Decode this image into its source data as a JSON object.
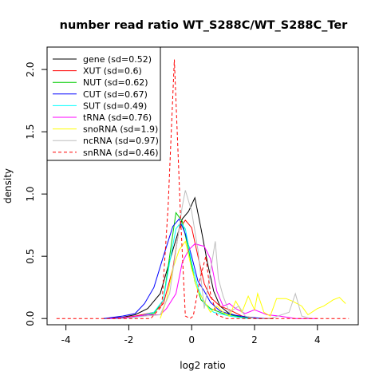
{
  "chart_data": {
    "type": "line",
    "title": "number read ratio WT_S288C/WT_S288C_Ter",
    "xlabel": "log2 ratio",
    "ylabel": "density",
    "xlim": [
      -4.6,
      5.3
    ],
    "ylim": [
      -0.05,
      2.18
    ],
    "xticks": [
      -4,
      -2,
      0,
      2,
      4
    ],
    "yticks": [
      0.0,
      0.5,
      1.0,
      1.5,
      2.0
    ],
    "xtick_labels": [
      "-4",
      "-2",
      "0",
      "2",
      "4"
    ],
    "ytick_labels": [
      "0.0",
      "0.5",
      "1.0",
      "1.5",
      "2.0"
    ],
    "grid": false,
    "legend_position": "top-left",
    "series": [
      {
        "name": "gene (sd=0.52)",
        "color": "#000000",
        "dash": false,
        "points": [
          [
            -2.8,
            0.0
          ],
          [
            -2.2,
            0.01
          ],
          [
            -1.8,
            0.03
          ],
          [
            -1.4,
            0.08
          ],
          [
            -1.0,
            0.2
          ],
          [
            -0.6,
            0.55
          ],
          [
            -0.3,
            0.8
          ],
          [
            -0.1,
            0.86
          ],
          [
            0.1,
            0.97
          ],
          [
            0.3,
            0.72
          ],
          [
            0.5,
            0.45
          ],
          [
            0.7,
            0.22
          ],
          [
            0.9,
            0.1
          ],
          [
            1.2,
            0.04
          ],
          [
            1.6,
            0.01
          ],
          [
            2.2,
            0.0
          ],
          [
            2.6,
            0.0
          ]
        ]
      },
      {
        "name": "XUT (sd=0.6)",
        "color": "#ff0000",
        "dash": false,
        "points": [
          [
            -2.4,
            0.0
          ],
          [
            -1.8,
            0.02
          ],
          [
            -1.2,
            0.05
          ],
          [
            -0.9,
            0.12
          ],
          [
            -0.6,
            0.4
          ],
          [
            -0.4,
            0.72
          ],
          [
            -0.2,
            0.79
          ],
          [
            0.0,
            0.73
          ],
          [
            0.2,
            0.5
          ],
          [
            0.4,
            0.28
          ],
          [
            0.6,
            0.17
          ],
          [
            0.9,
            0.1
          ],
          [
            1.2,
            0.07
          ],
          [
            1.6,
            0.02
          ],
          [
            2.2,
            0.0
          ],
          [
            2.6,
            0.0
          ]
        ]
      },
      {
        "name": "NUT (sd=0.62)",
        "color": "#00cc00",
        "dash": false,
        "points": [
          [
            -2.4,
            0.0
          ],
          [
            -1.8,
            0.01
          ],
          [
            -1.2,
            0.04
          ],
          [
            -0.9,
            0.15
          ],
          [
            -0.7,
            0.5
          ],
          [
            -0.5,
            0.85
          ],
          [
            -0.3,
            0.78
          ],
          [
            -0.1,
            0.55
          ],
          [
            0.1,
            0.3
          ],
          [
            0.3,
            0.15
          ],
          [
            0.6,
            0.08
          ],
          [
            1.0,
            0.04
          ],
          [
            1.6,
            0.01
          ],
          [
            2.2,
            0.0
          ]
        ]
      },
      {
        "name": "CUT (sd=0.67)",
        "color": "#0000ff",
        "dash": false,
        "points": [
          [
            -2.8,
            0.0
          ],
          [
            -2.2,
            0.02
          ],
          [
            -1.8,
            0.04
          ],
          [
            -1.5,
            0.12
          ],
          [
            -1.2,
            0.25
          ],
          [
            -0.9,
            0.5
          ],
          [
            -0.6,
            0.74
          ],
          [
            -0.4,
            0.8
          ],
          [
            -0.2,
            0.68
          ],
          [
            0.0,
            0.5
          ],
          [
            0.2,
            0.3
          ],
          [
            0.4,
            0.22
          ],
          [
            0.6,
            0.13
          ],
          [
            0.9,
            0.06
          ],
          [
            1.3,
            0.03
          ],
          [
            1.8,
            0.01
          ],
          [
            2.4,
            0.0
          ]
        ]
      },
      {
        "name": "SUT (sd=0.49)",
        "color": "#00ffff",
        "dash": false,
        "points": [
          [
            -2.4,
            0.0
          ],
          [
            -1.8,
            0.01
          ],
          [
            -1.2,
            0.05
          ],
          [
            -0.9,
            0.15
          ],
          [
            -0.7,
            0.45
          ],
          [
            -0.5,
            0.72
          ],
          [
            -0.35,
            0.77
          ],
          [
            -0.2,
            0.72
          ],
          [
            0.0,
            0.45
          ],
          [
            0.2,
            0.25
          ],
          [
            0.4,
            0.12
          ],
          [
            0.7,
            0.05
          ],
          [
            1.2,
            0.02
          ],
          [
            1.8,
            0.0
          ]
        ]
      },
      {
        "name": "tRNA (sd=0.76)",
        "color": "#ff00ff",
        "dash": false,
        "points": [
          [
            -2.6,
            0.0
          ],
          [
            -2.0,
            0.01
          ],
          [
            -1.4,
            0.03
          ],
          [
            -1.0,
            0.03
          ],
          [
            -0.8,
            0.08
          ],
          [
            -0.5,
            0.2
          ],
          [
            -0.3,
            0.45
          ],
          [
            -0.1,
            0.55
          ],
          [
            0.1,
            0.6
          ],
          [
            0.4,
            0.58
          ],
          [
            0.6,
            0.48
          ],
          [
            0.8,
            0.22
          ],
          [
            1.0,
            0.1
          ],
          [
            1.2,
            0.12
          ],
          [
            1.4,
            0.08
          ],
          [
            1.7,
            0.04
          ],
          [
            2.0,
            0.07
          ],
          [
            2.4,
            0.03
          ],
          [
            2.8,
            0.02
          ],
          [
            3.3,
            0.0
          ],
          [
            4.0,
            0.0
          ]
        ]
      },
      {
        "name": "snoRNA (sd=1.9)",
        "color": "#ffff00",
        "dash": false,
        "points": [
          [
            -1.0,
            0.0
          ],
          [
            -0.8,
            0.15
          ],
          [
            -0.6,
            0.4
          ],
          [
            -0.4,
            0.55
          ],
          [
            -0.2,
            0.62
          ],
          [
            0.0,
            0.4
          ],
          [
            0.2,
            0.22
          ],
          [
            0.4,
            0.14
          ],
          [
            0.6,
            0.05
          ],
          [
            0.8,
            0.1
          ],
          [
            1.0,
            0.05
          ],
          [
            1.2,
            0.02
          ],
          [
            1.4,
            0.14
          ],
          [
            1.6,
            0.05
          ],
          [
            1.8,
            0.18
          ],
          [
            2.0,
            0.07
          ],
          [
            2.1,
            0.2
          ],
          [
            2.3,
            0.05
          ],
          [
            2.5,
            0.02
          ],
          [
            2.7,
            0.16
          ],
          [
            3.0,
            0.16
          ],
          [
            3.2,
            0.14
          ],
          [
            3.5,
            0.1
          ],
          [
            3.7,
            0.03
          ],
          [
            4.0,
            0.08
          ],
          [
            4.2,
            0.1
          ],
          [
            4.5,
            0.15
          ],
          [
            4.7,
            0.17
          ],
          [
            4.9,
            0.12
          ]
        ]
      },
      {
        "name": "ncRNA (sd=0.97)",
        "color": "#bebebe",
        "dash": false,
        "points": [
          [
            -2.2,
            0.0
          ],
          [
            -1.5,
            0.02
          ],
          [
            -1.0,
            0.03
          ],
          [
            -0.7,
            0.2
          ],
          [
            -0.5,
            0.55
          ],
          [
            -0.3,
            0.9
          ],
          [
            -0.2,
            1.03
          ],
          [
            0.0,
            0.86
          ],
          [
            0.2,
            0.55
          ],
          [
            0.4,
            0.08
          ],
          [
            0.6,
            0.38
          ],
          [
            0.75,
            0.62
          ],
          [
            0.85,
            0.32
          ],
          [
            1.0,
            0.18
          ],
          [
            1.2,
            0.05
          ],
          [
            1.5,
            0.1
          ],
          [
            1.7,
            0.02
          ],
          [
            2.0,
            0.0
          ],
          [
            2.5,
            0.0
          ],
          [
            3.1,
            0.05
          ],
          [
            3.3,
            0.2
          ],
          [
            3.5,
            0.02
          ],
          [
            3.8,
            0.0
          ]
        ]
      },
      {
        "name": "snRNA (sd=0.46)",
        "color": "#ff0000",
        "dash": true,
        "points": [
          [
            -4.3,
            0.0
          ],
          [
            -3.0,
            0.0
          ],
          [
            -2.0,
            0.0
          ],
          [
            -1.3,
            0.0
          ],
          [
            -0.95,
            0.1
          ],
          [
            -0.75,
            0.9
          ],
          [
            -0.55,
            2.08
          ],
          [
            -0.35,
            0.8
          ],
          [
            -0.2,
            0.02
          ],
          [
            -0.05,
            0.0
          ],
          [
            0.05,
            0.02
          ],
          [
            0.25,
            0.3
          ],
          [
            0.45,
            0.5
          ],
          [
            0.6,
            0.2
          ],
          [
            0.8,
            0.03
          ],
          [
            1.1,
            0.0
          ],
          [
            2.0,
            0.0
          ],
          [
            3.0,
            0.0
          ],
          [
            4.0,
            0.0
          ],
          [
            5.0,
            0.0
          ]
        ]
      }
    ]
  }
}
